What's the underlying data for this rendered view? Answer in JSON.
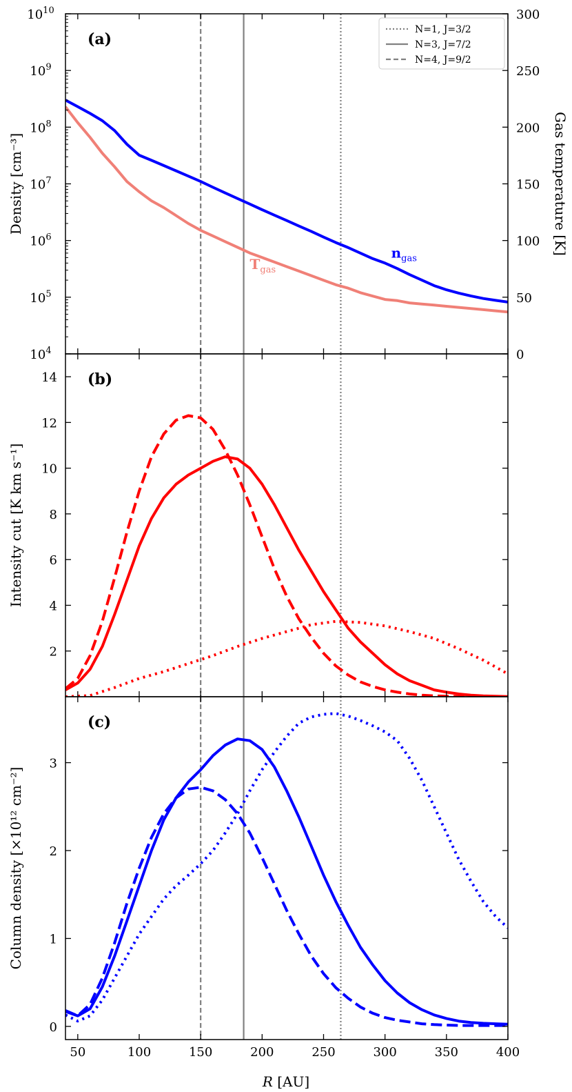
{
  "figure": {
    "x_label_prefix": "R",
    "x_label_suffix": " [AU]"
  },
  "colors": {
    "blue": "#0000ff",
    "red": "#ff0000",
    "salmon": "#f08077",
    "vline": "#808080"
  },
  "legend": {
    "location": "top-right",
    "entries": [
      {
        "label": "N=1, J=3/2",
        "style": "dotted"
      },
      {
        "label": "N=3, J=7/2",
        "style": "solid"
      },
      {
        "label": "N=4, J=9/2",
        "style": "dashed"
      }
    ]
  },
  "vertical_lines": [
    {
      "x": 264,
      "style": "dotted",
      "transition": "N=1, J=3/2"
    },
    {
      "x": 185,
      "style": "solid",
      "transition": "N=3, J=7/2"
    },
    {
      "x": 150,
      "style": "dashed",
      "transition": "N=4, J=9/2"
    }
  ],
  "chart_data": [
    {
      "type": "line",
      "panel_label": "(a)",
      "ylabel": "Density [cm⁻³]",
      "yscale": "log",
      "ylim": [
        10000,
        10000000000
      ],
      "yticks": [
        {
          "value": 10000,
          "base": "10",
          "exp": "4"
        },
        {
          "value": 100000,
          "base": "10",
          "exp": "5"
        },
        {
          "value": 1000000,
          "base": "10",
          "exp": "6"
        },
        {
          "value": 10000000,
          "base": "10",
          "exp": "7"
        },
        {
          "value": 100000000,
          "base": "10",
          "exp": "8"
        },
        {
          "value": 1000000000,
          "base": "10",
          "exp": "9"
        },
        {
          "value": 10000000000,
          "base": "10",
          "exp": "10"
        }
      ],
      "y2label": "Gas temperature [K]",
      "y2lim": [
        0,
        300
      ],
      "y2ticks": [
        "0",
        "50",
        "100",
        "150",
        "200",
        "250",
        "300"
      ],
      "xlim": [
        40,
        400
      ],
      "series": [
        {
          "name": "n",
          "name_sub": "gas",
          "axis": "left",
          "color": "#0000ff",
          "style": "solid",
          "x": [
            40,
            50,
            60,
            70,
            80,
            90,
            100,
            110,
            120,
            130,
            140,
            150,
            160,
            170,
            180,
            190,
            200,
            210,
            220,
            230,
            240,
            250,
            260,
            270,
            280,
            290,
            300,
            310,
            320,
            330,
            340,
            350,
            360,
            370,
            380,
            390,
            400
          ],
          "y": [
            300000000,
            230000000,
            175000000,
            130000000,
            87000000,
            50000000,
            32000000,
            26000000,
            21000000,
            17000000,
            13700000,
            11000000,
            8700000,
            6900000,
            5500000,
            4400000,
            3500000,
            2800000,
            2250000,
            1800000,
            1450000,
            1150000,
            920000,
            750000,
            600000,
            480000,
            400000,
            320000,
            250000,
            200000,
            160000,
            135000,
            118000,
            105000,
            95000,
            88000,
            82000
          ]
        },
        {
          "name": "T",
          "name_sub": "gas",
          "axis": "right",
          "color": "#f08077",
          "style": "solid",
          "x": [
            40,
            50,
            60,
            70,
            80,
            90,
            100,
            110,
            120,
            130,
            140,
            150,
            160,
            170,
            180,
            190,
            200,
            210,
            220,
            230,
            240,
            250,
            260,
            270,
            280,
            290,
            300,
            310,
            320,
            330,
            340,
            350,
            360,
            370,
            380,
            390,
            400
          ],
          "y": [
            218,
            204,
            191,
            177,
            165,
            152,
            143,
            135,
            129,
            122,
            115,
            109,
            104,
            99,
            94,
            89,
            85,
            81,
            77,
            73,
            69,
            65,
            61,
            58,
            54,
            51,
            48,
            47,
            45,
            44,
            43,
            42,
            41,
            40,
            39,
            38,
            37
          ]
        }
      ],
      "annotations": [
        {
          "text": "n",
          "sub": "gas",
          "x": 305,
          "y": 500000,
          "color": "#0000ff"
        },
        {
          "text": "T",
          "sub": "gas",
          "x": 190,
          "y": 75,
          "axis": "right",
          "color": "#f08077"
        }
      ]
    },
    {
      "type": "line",
      "panel_label": "(b)",
      "ylabel": "Intensity cut [K km s⁻¹]",
      "ylim": [
        0,
        15
      ],
      "yticks": [
        "2",
        "4",
        "6",
        "8",
        "10",
        "12",
        "14"
      ],
      "xlim": [
        40,
        400
      ],
      "series": [
        {
          "transition": "N=1, J=3/2",
          "color": "#ff0000",
          "style": "dotted",
          "x": [
            40,
            60,
            80,
            100,
            120,
            140,
            160,
            180,
            200,
            220,
            240,
            260,
            280,
            300,
            320,
            340,
            360,
            380,
            400
          ],
          "y": [
            0.0,
            0.05,
            0.4,
            0.8,
            1.1,
            1.45,
            1.8,
            2.2,
            2.55,
            2.85,
            3.15,
            3.3,
            3.25,
            3.1,
            2.85,
            2.55,
            2.1,
            1.6,
            1.0
          ]
        },
        {
          "transition": "N=3, J=7/2",
          "color": "#ff0000",
          "style": "solid",
          "x": [
            40,
            50,
            60,
            70,
            80,
            90,
            100,
            110,
            120,
            130,
            140,
            150,
            160,
            170,
            180,
            190,
            200,
            210,
            220,
            230,
            240,
            250,
            260,
            270,
            280,
            290,
            300,
            310,
            320,
            330,
            340,
            350,
            360,
            370,
            380,
            390,
            400
          ],
          "y": [
            0.3,
            0.6,
            1.2,
            2.2,
            3.6,
            5.1,
            6.6,
            7.8,
            8.7,
            9.3,
            9.7,
            10.0,
            10.3,
            10.5,
            10.4,
            10.0,
            9.3,
            8.4,
            7.4,
            6.4,
            5.5,
            4.6,
            3.8,
            3.0,
            2.4,
            1.9,
            1.4,
            1.0,
            0.7,
            0.5,
            0.3,
            0.2,
            0.12,
            0.07,
            0.04,
            0.02,
            0.01
          ]
        },
        {
          "transition": "N=4, J=9/2",
          "color": "#ff0000",
          "style": "dashed",
          "x": [
            40,
            50,
            60,
            70,
            80,
            90,
            100,
            110,
            120,
            130,
            140,
            150,
            160,
            170,
            180,
            190,
            200,
            210,
            220,
            230,
            240,
            250,
            260,
            270,
            280,
            290,
            300,
            310,
            320,
            330,
            340,
            350,
            360,
            370,
            380
          ],
          "y": [
            0.35,
            0.8,
            1.8,
            3.3,
            5.2,
            7.2,
            9.0,
            10.5,
            11.5,
            12.1,
            12.3,
            12.2,
            11.7,
            10.8,
            9.7,
            8.4,
            7.0,
            5.6,
            4.4,
            3.4,
            2.6,
            1.9,
            1.35,
            0.95,
            0.65,
            0.45,
            0.3,
            0.2,
            0.12,
            0.07,
            0.04,
            0.02,
            0.01,
            0.0,
            0.0
          ]
        }
      ]
    },
    {
      "type": "line",
      "panel_label": "(c)",
      "ylabel": "Column density [×10¹² cm⁻²]",
      "ylim": [
        -0.15,
        3.75
      ],
      "yticks": [
        "0",
        "1",
        "2",
        "3"
      ],
      "xlim": [
        40,
        400
      ],
      "xticks": [
        "50",
        "100",
        "150",
        "200",
        "250",
        "300",
        "350",
        "400"
      ],
      "series": [
        {
          "transition": "N=1, J=3/2",
          "color": "#0000ff",
          "style": "dotted",
          "x": [
            40,
            50,
            60,
            70,
            80,
            90,
            100,
            110,
            120,
            130,
            140,
            150,
            160,
            170,
            180,
            190,
            200,
            210,
            220,
            230,
            240,
            250,
            260,
            270,
            280,
            290,
            300,
            310,
            320,
            330,
            340,
            350,
            360,
            370,
            380,
            390,
            400
          ],
          "y": [
            0.13,
            0.06,
            0.12,
            0.3,
            0.55,
            0.8,
            1.05,
            1.25,
            1.45,
            1.6,
            1.72,
            1.85,
            2.0,
            2.2,
            2.42,
            2.68,
            2.92,
            3.12,
            3.3,
            3.45,
            3.52,
            3.55,
            3.56,
            3.53,
            3.48,
            3.42,
            3.35,
            3.25,
            3.05,
            2.8,
            2.5,
            2.2,
            1.9,
            1.65,
            1.42,
            1.25,
            1.12
          ]
        },
        {
          "transition": "N=3, J=7/2",
          "color": "#0000ff",
          "style": "solid",
          "x": [
            40,
            50,
            60,
            70,
            80,
            90,
            100,
            110,
            120,
            130,
            140,
            150,
            160,
            170,
            180,
            190,
            200,
            210,
            220,
            230,
            240,
            250,
            260,
            270,
            280,
            290,
            300,
            310,
            320,
            330,
            340,
            350,
            360,
            370,
            380,
            390,
            400
          ],
          "y": [
            0.17,
            0.12,
            0.2,
            0.45,
            0.8,
            1.2,
            1.6,
            2.0,
            2.35,
            2.6,
            2.78,
            2.92,
            3.08,
            3.2,
            3.27,
            3.25,
            3.15,
            2.95,
            2.68,
            2.38,
            2.05,
            1.72,
            1.42,
            1.15,
            0.9,
            0.7,
            0.52,
            0.38,
            0.27,
            0.19,
            0.13,
            0.09,
            0.06,
            0.045,
            0.035,
            0.03,
            0.025
          ]
        },
        {
          "transition": "N=4, J=9/2",
          "color": "#0000ff",
          "style": "dashed",
          "x": [
            40,
            50,
            60,
            70,
            80,
            90,
            100,
            110,
            120,
            130,
            140,
            150,
            160,
            170,
            180,
            190,
            200,
            210,
            220,
            230,
            240,
            250,
            260,
            270,
            280,
            290,
            300,
            310,
            320,
            330,
            340,
            350,
            360,
            370,
            380,
            390,
            400
          ],
          "y": [
            0.18,
            0.12,
            0.25,
            0.55,
            0.95,
            1.4,
            1.8,
            2.15,
            2.42,
            2.6,
            2.7,
            2.72,
            2.68,
            2.58,
            2.42,
            2.2,
            1.92,
            1.62,
            1.32,
            1.05,
            0.8,
            0.6,
            0.44,
            0.32,
            0.22,
            0.15,
            0.1,
            0.07,
            0.05,
            0.03,
            0.02,
            0.015,
            0.01,
            0.01,
            0.01,
            0.01,
            0.01
          ]
        }
      ]
    }
  ]
}
